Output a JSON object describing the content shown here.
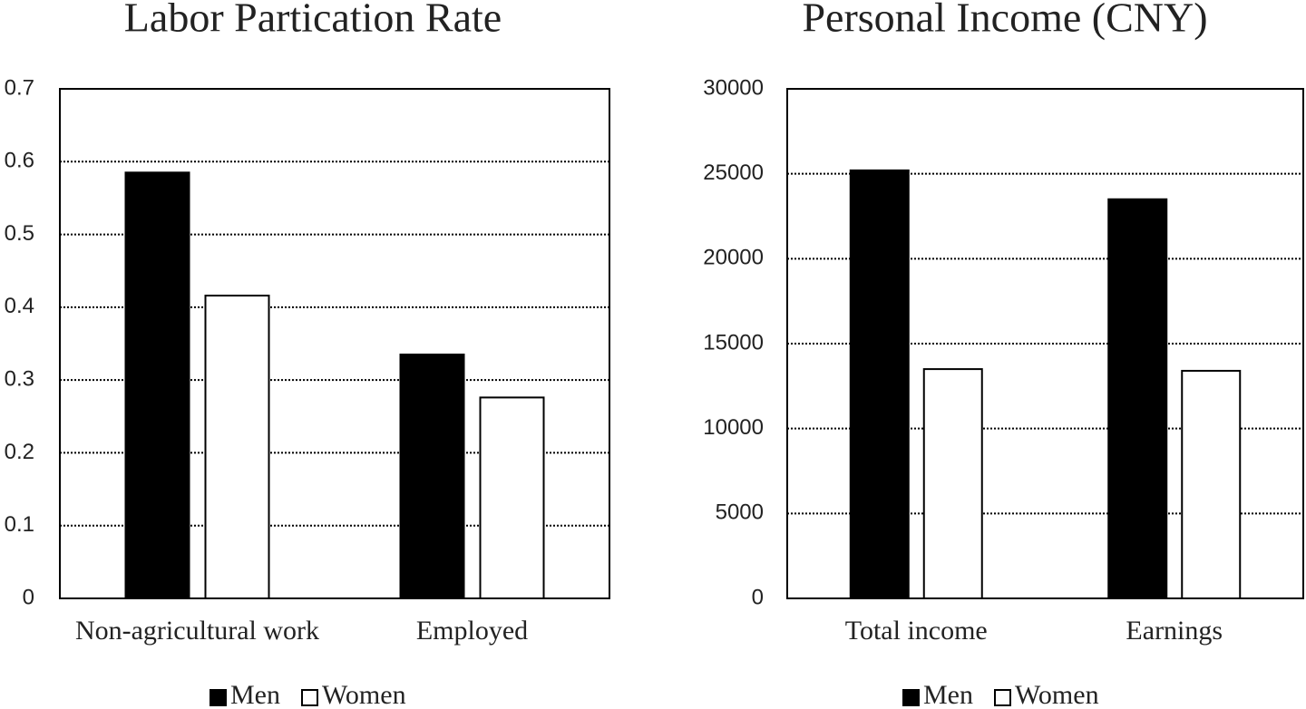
{
  "chart_data": [
    {
      "type": "bar",
      "title": "Labor Partication Rate",
      "categories": [
        "Non-agricultural work",
        "Employed"
      ],
      "series": [
        {
          "name": "Men",
          "color": "#000000",
          "values": [
            0.585,
            0.335
          ]
        },
        {
          "name": "Women",
          "color": "#ffffff",
          "values": [
            0.416,
            0.276
          ]
        }
      ],
      "ylim": [
        0,
        0.7
      ],
      "yticks": [
        0,
        0.1,
        0.2,
        0.3,
        0.4,
        0.5,
        0.6,
        0.7
      ],
      "grid": true
    },
    {
      "type": "bar",
      "title": "Personal Income (CNY)",
      "categories": [
        "Total income",
        "Earnings"
      ],
      "series": [
        {
          "name": "Men",
          "color": "#000000",
          "values": [
            25200,
            23500
          ]
        },
        {
          "name": "Women",
          "color": "#ffffff",
          "values": [
            13500,
            13400
          ]
        }
      ],
      "ylim": [
        0,
        30000
      ],
      "yticks": [
        0,
        5000,
        10000,
        15000,
        20000,
        25000,
        30000
      ],
      "grid": true
    }
  ]
}
